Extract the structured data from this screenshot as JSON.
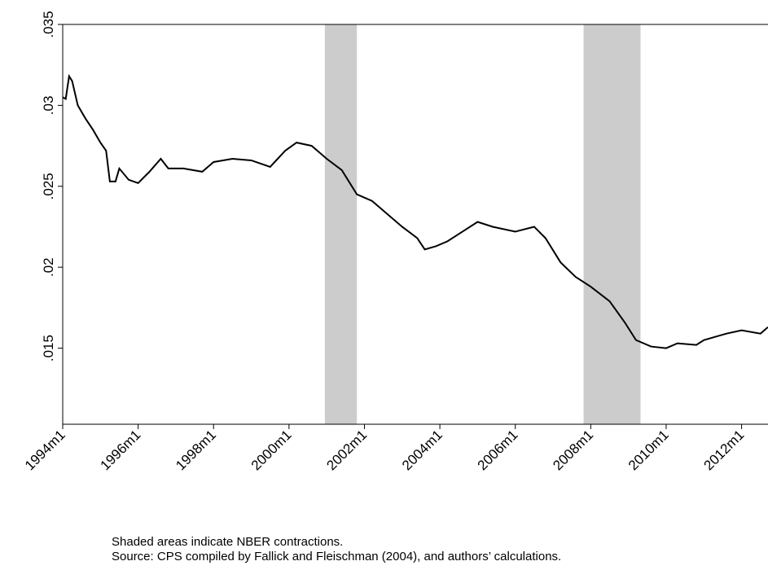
{
  "chart_data": {
    "type": "line",
    "x": [
      1994.0,
      1994.08,
      1994.17,
      1994.25,
      1994.4,
      1994.6,
      1994.8,
      1995.0,
      1995.15,
      1995.25,
      1995.4,
      1995.5,
      1995.75,
      1996.0,
      1996.3,
      1996.6,
      1996.8,
      1997.2,
      1997.7,
      1998.0,
      1998.5,
      1999.0,
      1999.5,
      1999.9,
      2000.2,
      2000.6,
      2000.8,
      2001.0,
      2001.4,
      2001.8,
      2002.2,
      2002.6,
      2003.0,
      2003.4,
      2003.6,
      2003.9,
      2004.2,
      2004.6,
      2005.0,
      2005.4,
      2006.0,
      2006.5,
      2006.8,
      2007.2,
      2007.6,
      2008.0,
      2008.5,
      2008.9,
      2009.2,
      2009.6,
      2010.0,
      2010.3,
      2010.8,
      2011.0,
      2011.6,
      2012.0,
      2012.5,
      2012.7
    ],
    "values": [
      0.0305,
      0.0304,
      0.0318,
      0.0315,
      0.03,
      0.0292,
      0.0285,
      0.0277,
      0.0272,
      0.0253,
      0.0253,
      0.0261,
      0.0254,
      0.0252,
      0.0259,
      0.0267,
      0.0261,
      0.0261,
      0.0259,
      0.0265,
      0.0267,
      0.0266,
      0.0262,
      0.0272,
      0.0277,
      0.0275,
      0.0271,
      0.0267,
      0.026,
      0.0245,
      0.0241,
      0.0233,
      0.0225,
      0.0218,
      0.0211,
      0.0213,
      0.0216,
      0.0222,
      0.0228,
      0.0225,
      0.0222,
      0.0225,
      0.0218,
      0.0203,
      0.0194,
      0.0188,
      0.0179,
      0.0166,
      0.0155,
      0.0151,
      0.015,
      0.0153,
      0.0152,
      0.0155,
      0.0159,
      0.0161,
      0.0159,
      0.0163
    ],
    "color": "#000000",
    "shaded_regions": [
      [
        2000.95,
        2001.8
      ],
      [
        2007.81,
        2009.32
      ]
    ],
    "shade_color": "#cccccc",
    "xlim": [
      1994,
      2012.7
    ],
    "xticks": [
      {
        "value": 1994,
        "label": "1994m1"
      },
      {
        "value": 1996,
        "label": "1996m1"
      },
      {
        "value": 1998,
        "label": "1998m1"
      },
      {
        "value": 2000,
        "label": "2000m1"
      },
      {
        "value": 2002,
        "label": "2002m1"
      },
      {
        "value": 2004,
        "label": "2004m1"
      },
      {
        "value": 2006,
        "label": "2006m1"
      },
      {
        "value": 2008,
        "label": "2008m1"
      },
      {
        "value": 2010,
        "label": "2010m1"
      },
      {
        "value": 2012,
        "label": "2012m1"
      }
    ],
    "ylim": [
      0.0103,
      0.035
    ],
    "yticks": [
      {
        "value": 0.015,
        "label": ".015"
      },
      {
        "value": 0.02,
        "label": ".02"
      },
      {
        "value": 0.025,
        "label": ".025"
      },
      {
        "value": 0.03,
        "label": ".03"
      },
      {
        "value": 0.035,
        "label": ".035"
      }
    ],
    "notes": [
      "Shaded areas indicate NBER contractions.",
      "Source: CPS compiled by Fallick and Fleischman (2004), and authors’ calculations."
    ]
  }
}
